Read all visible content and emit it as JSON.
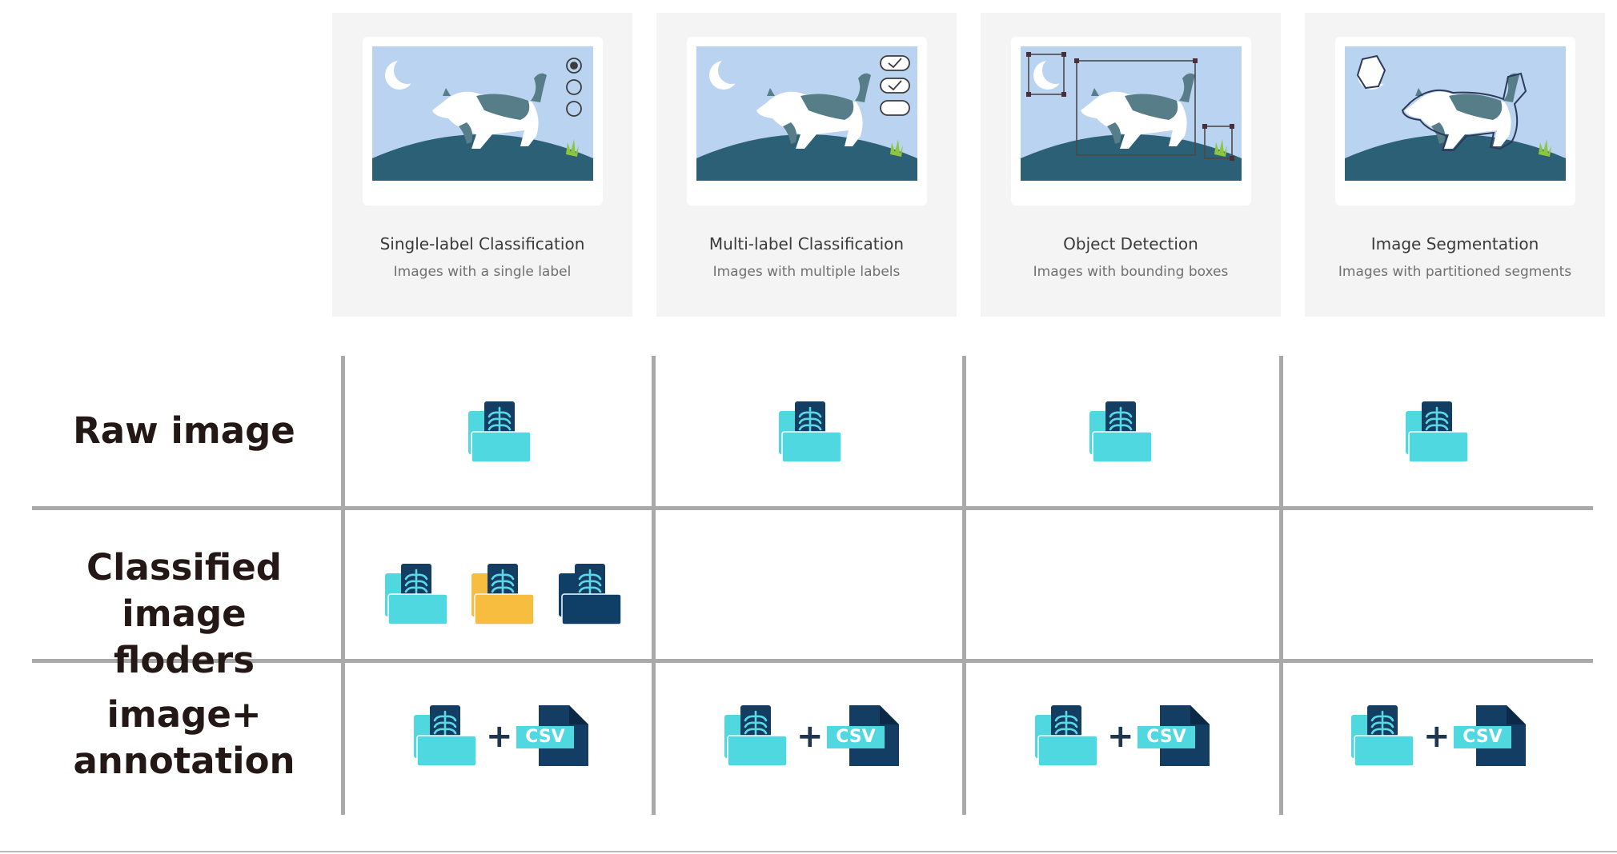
{
  "task_cards": [
    {
      "title": "Single-label Classification",
      "subtitle": "Images with a single label",
      "overlay": "radio-options-icon"
    },
    {
      "title": "Multi-label Classification",
      "subtitle": "Images with multiple labels",
      "overlay": "checkbox-options-icon"
    },
    {
      "title": "Object Detection",
      "subtitle": "Images with bounding boxes",
      "overlay": "bounding-box-icon"
    },
    {
      "title": "Image Segmentation",
      "subtitle": "Images with partitioned segments",
      "overlay": "segment-outline-icon"
    }
  ],
  "rows": [
    {
      "label_line1": "Raw image",
      "label_line2": ""
    },
    {
      "label_line1": "Classified image",
      "label_line2": "floders"
    },
    {
      "label_line1": "image+",
      "label_line2": "annotation"
    }
  ],
  "csv_label": "CSV",
  "plus_sign": "+",
  "colors": {
    "sky": "#b9d3f1",
    "hill": "#2c6076",
    "cat_patch": "#567d88",
    "folder_cyan": "#50d8e0",
    "folder_yellow": "#f6bd3e",
    "folder_navy": "#0f3f66",
    "doc_navy": "#143d63",
    "xray_ribs": "#5ad8e6",
    "grid_line": "#a9a9a9"
  }
}
